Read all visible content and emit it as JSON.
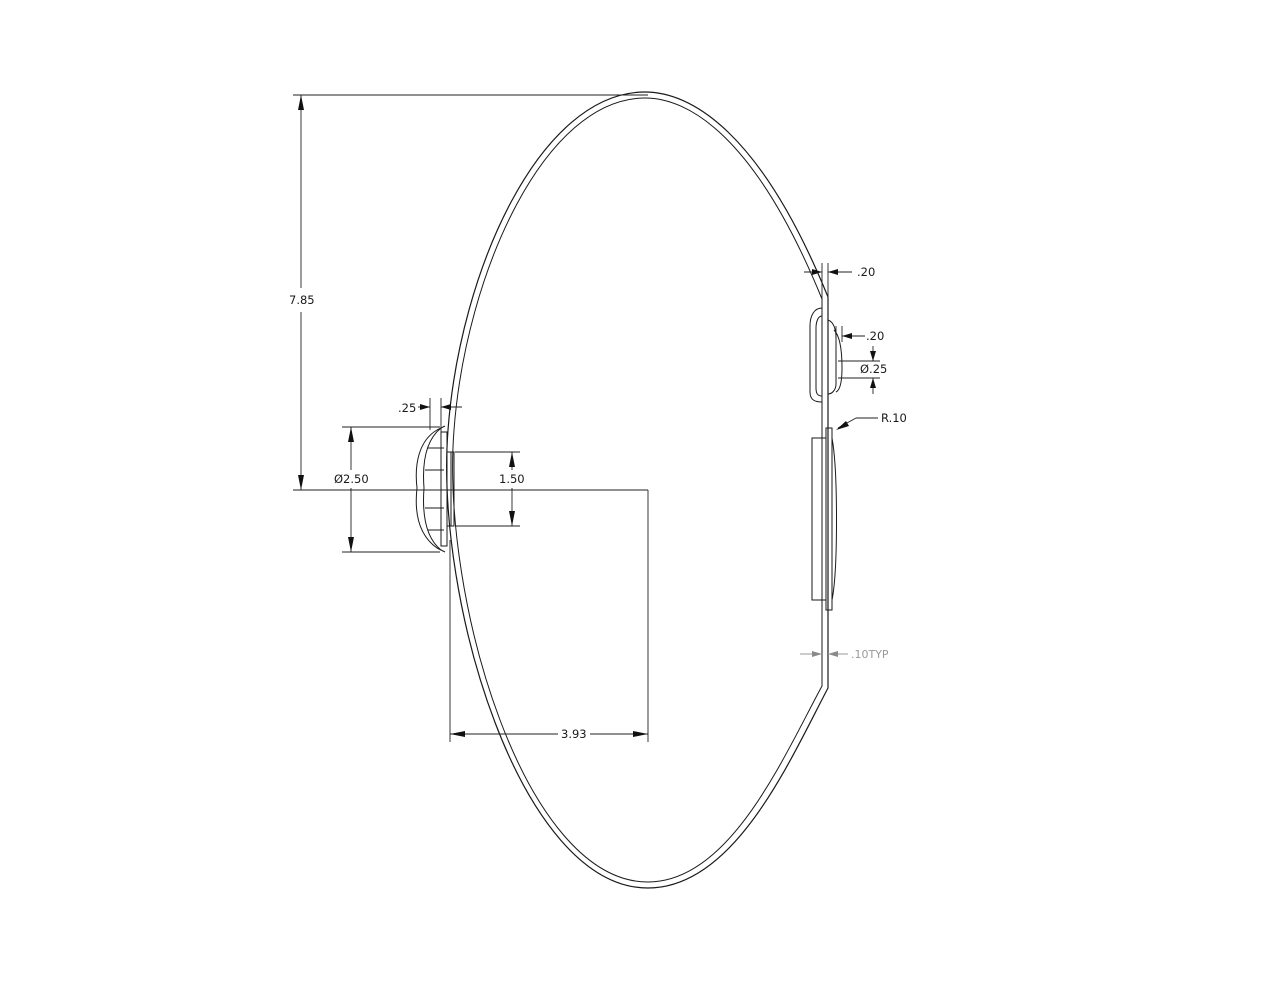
{
  "drawing": {
    "dimensions": {
      "overall_height": "7.85",
      "horizontal_offset": "3.93",
      "flange_diameter": "Ø2.50",
      "boss_height": "1.50",
      "flange_thickness": ".25",
      "top_thickness": ".20",
      "tab_thickness": ".20",
      "hole_diameter": "Ø.25",
      "fillet_radius": "R.10",
      "wall_typ": ".10TYP"
    }
  }
}
